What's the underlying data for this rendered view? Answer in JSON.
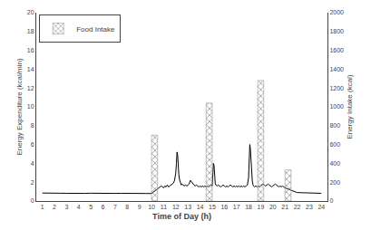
{
  "chart_data": {
    "type": "line",
    "xlabel": "Time of Day (h)",
    "ylabel": "Energy Expenditure (kcal/min)",
    "y2label": "Energy Intake (kcal)",
    "xlim": [
      0.5,
      24.5
    ],
    "xticks": [
      1,
      2,
      3,
      4,
      5,
      6,
      7,
      8,
      9,
      10,
      11,
      12,
      13,
      14,
      15,
      16,
      17,
      18,
      19,
      20,
      21,
      22,
      23,
      24
    ],
    "ylim": [
      0,
      20
    ],
    "yticks": [
      0,
      2,
      4,
      6,
      8,
      10,
      12,
      14,
      16,
      18,
      20
    ],
    "y2lim": [
      0,
      2000
    ],
    "y2ticks": [
      0,
      200,
      400,
      600,
      800,
      1000,
      1200,
      1400,
      1600,
      1800,
      2000
    ],
    "grid": false,
    "legend": "upper left",
    "series": [
      {
        "name": "Food Intake",
        "type": "bar",
        "axis": "y2",
        "color": "#c8c8c8",
        "x": [
          10.25,
          14.75,
          19.0,
          21.25
        ],
        "values": [
          700,
          1040,
          1280,
          330
        ]
      },
      {
        "type": "line",
        "color": "#000000",
        "x": [
          1.0,
          1.5,
          2.0,
          2.5,
          3.0,
          3.5,
          4.0,
          4.5,
          5.0,
          5.5,
          6.0,
          6.5,
          7.0,
          7.5,
          8.0,
          8.5,
          9.0,
          9.5,
          10.0,
          10.1,
          10.2,
          10.3,
          10.4,
          10.5,
          10.6,
          10.7,
          10.8,
          10.9,
          11.0,
          11.1,
          11.2,
          11.3,
          11.4,
          11.5,
          11.6,
          11.7,
          11.8,
          11.9,
          12.0,
          12.05,
          12.1,
          12.15,
          12.2,
          12.25,
          12.3,
          12.35,
          12.4,
          12.45,
          12.5,
          12.6,
          12.7,
          12.8,
          12.9,
          13.0,
          13.1,
          13.2,
          13.3,
          13.4,
          13.5,
          13.6,
          13.7,
          13.8,
          13.9,
          14.0,
          14.1,
          14.2,
          14.3,
          14.4,
          14.5,
          14.6,
          14.7,
          14.8,
          14.9,
          15.0,
          15.05,
          15.1,
          15.15,
          15.2,
          15.25,
          15.3,
          15.4,
          15.5,
          15.6,
          15.7,
          15.8,
          15.9,
          16.0,
          16.1,
          16.2,
          16.3,
          16.4,
          16.5,
          16.6,
          16.7,
          16.8,
          16.9,
          17.0,
          17.1,
          17.2,
          17.3,
          17.4,
          17.5,
          17.6,
          17.7,
          17.8,
          17.9,
          18.0,
          18.05,
          18.1,
          18.15,
          18.2,
          18.25,
          18.3,
          18.35,
          18.4,
          18.5,
          18.6,
          18.7,
          18.8,
          18.9,
          19.0,
          19.1,
          19.2,
          19.3,
          19.4,
          19.5,
          19.6,
          19.7,
          19.8,
          19.9,
          20.0,
          20.1,
          20.2,
          20.3,
          20.4,
          20.5,
          20.6,
          20.7,
          20.8,
          20.9,
          21.0,
          21.2,
          21.4,
          21.6,
          22.0,
          22.5,
          23.0,
          23.5,
          24.0
        ],
        "values": [
          0.85,
          0.82,
          0.8,
          0.83,
          0.82,
          0.8,
          0.82,
          0.81,
          0.83,
          0.81,
          0.82,
          0.8,
          0.81,
          0.82,
          0.8,
          0.82,
          0.81,
          0.8,
          0.8,
          0.9,
          1.0,
          1.1,
          1.2,
          1.3,
          1.4,
          1.5,
          1.6,
          1.5,
          1.4,
          1.6,
          1.5,
          1.7,
          1.5,
          1.6,
          1.7,
          1.8,
          1.9,
          2.2,
          3.0,
          4.0,
          5.2,
          4.9,
          3.5,
          2.8,
          2.3,
          2.0,
          1.8,
          1.7,
          1.8,
          1.7,
          1.6,
          1.7,
          1.6,
          1.7,
          1.8,
          2.2,
          2.0,
          1.8,
          1.7,
          1.6,
          1.7,
          1.6,
          1.5,
          1.6,
          1.5,
          1.6,
          1.5,
          1.6,
          1.5,
          1.6,
          1.5,
          1.6,
          1.7,
          1.6,
          2.5,
          4.0,
          3.8,
          2.5,
          1.9,
          1.7,
          1.6,
          1.7,
          1.6,
          1.5,
          1.6,
          1.7,
          1.6,
          1.5,
          1.6,
          1.5,
          1.6,
          1.7,
          1.6,
          1.5,
          1.6,
          1.5,
          1.6,
          1.5,
          1.6,
          1.5,
          1.6,
          1.5,
          1.6,
          1.5,
          1.6,
          1.7,
          2.5,
          4.5,
          6.0,
          5.5,
          4.0,
          3.0,
          2.2,
          1.8,
          1.6,
          1.5,
          1.6,
          1.5,
          1.6,
          1.5,
          1.6,
          1.7,
          1.8,
          1.7,
          1.6,
          1.7,
          1.8,
          1.7,
          1.6,
          1.5,
          1.6,
          1.7,
          1.8,
          1.7,
          1.6,
          1.5,
          1.6,
          1.5,
          1.6,
          1.5,
          1.4,
          1.3,
          1.2,
          1.1,
          0.9,
          0.88,
          0.85,
          0.83,
          0.82
        ]
      }
    ]
  }
}
